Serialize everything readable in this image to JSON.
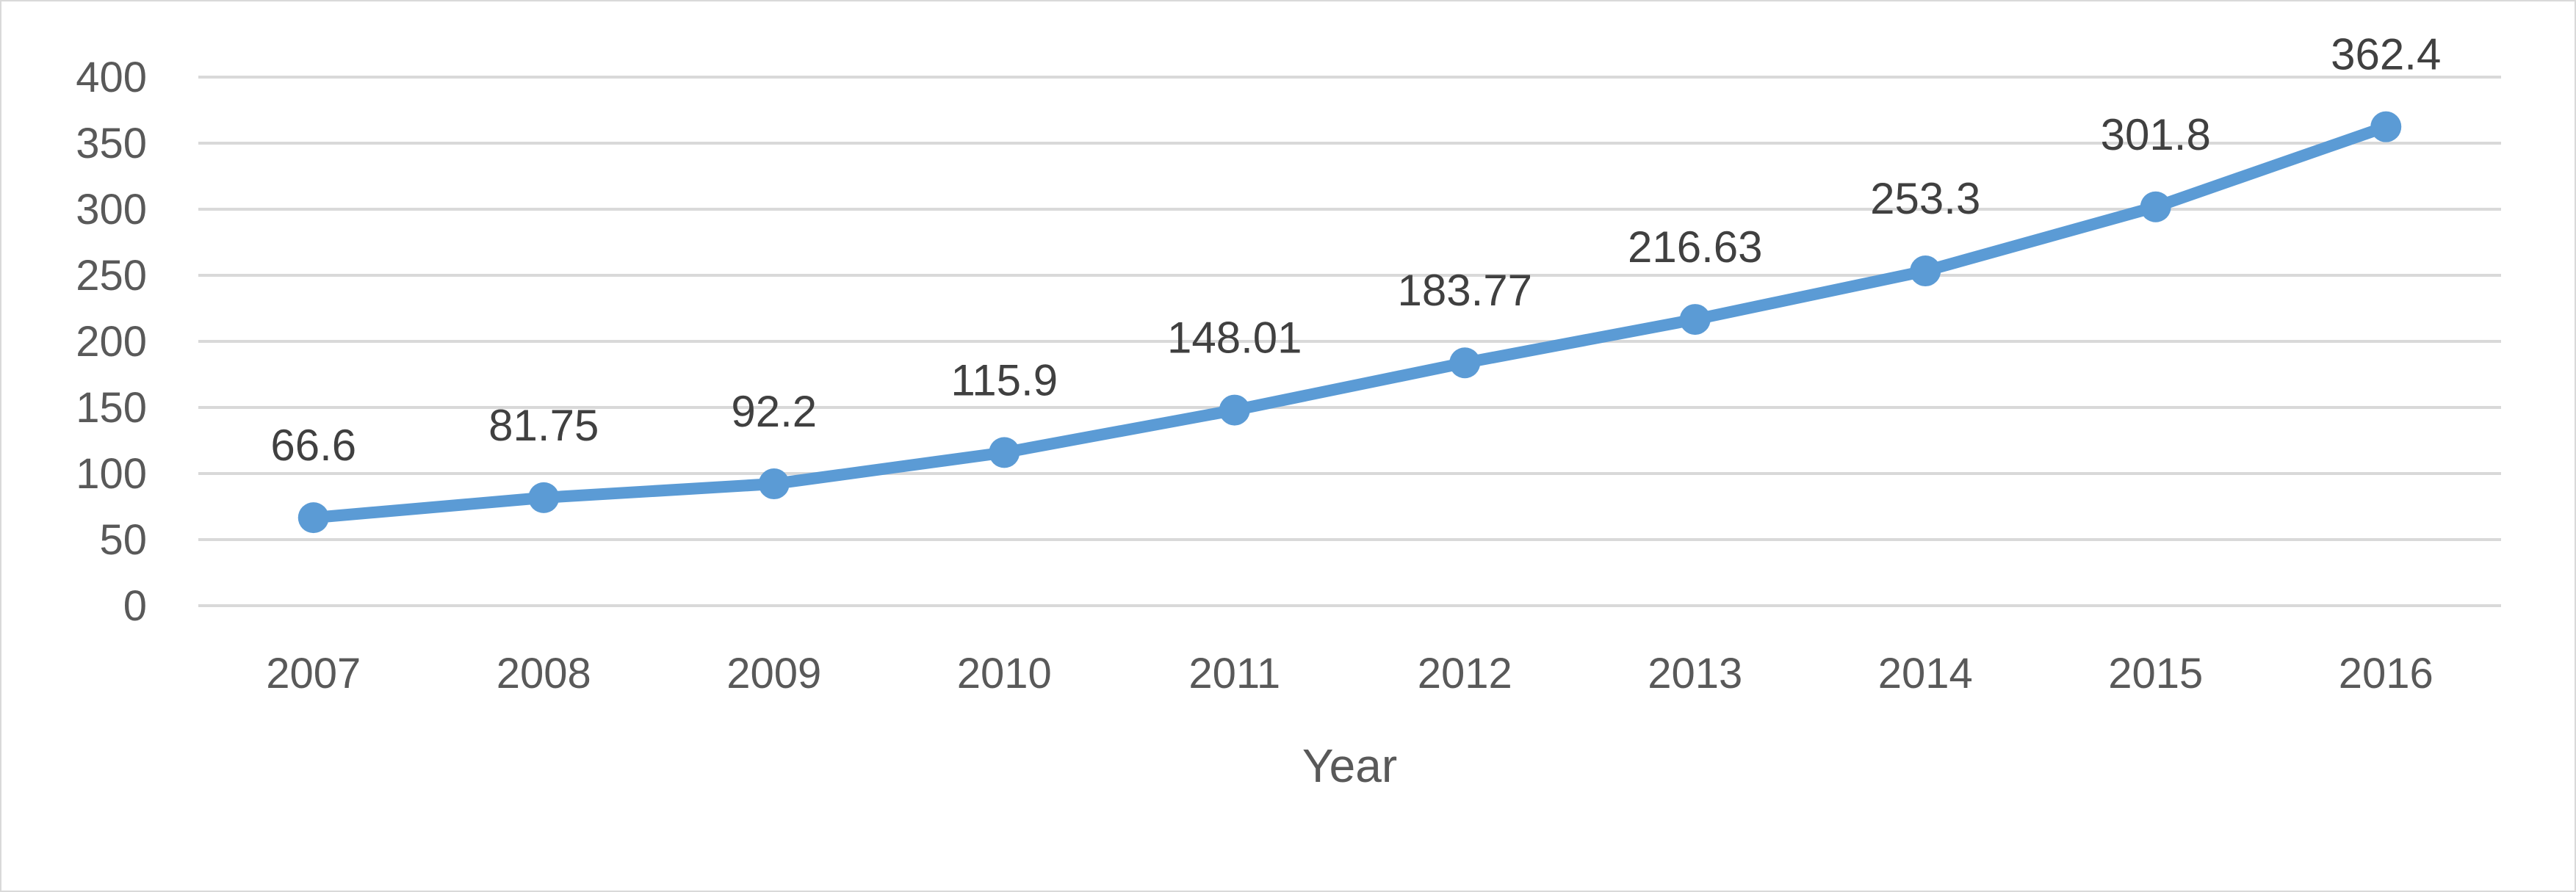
{
  "chart_data": {
    "type": "line",
    "title": "",
    "xlabel": "Year",
    "ylabel": "",
    "categories": [
      "2007",
      "2008",
      "2009",
      "2010",
      "2011",
      "2012",
      "2013",
      "2014",
      "2015",
      "2016"
    ],
    "series": [
      {
        "values": [
          66.6,
          81.75,
          92.2,
          115.9,
          148.01,
          183.77,
          216.63,
          253.3,
          301.8,
          362.4
        ],
        "labels": [
          "66.6",
          "81.75",
          "92.2",
          "115.9",
          "148.01",
          "183.77",
          "216.63",
          "253.3",
          "301.8",
          "362.4"
        ],
        "color": "#5b9bd5"
      }
    ],
    "ylim": [
      0,
      400
    ],
    "yticks": [
      "0",
      "50",
      "100",
      "150",
      "200",
      "250",
      "300",
      "350",
      "400"
    ],
    "grid": true,
    "gridColor": "#d9d9d9",
    "legend": "none"
  }
}
